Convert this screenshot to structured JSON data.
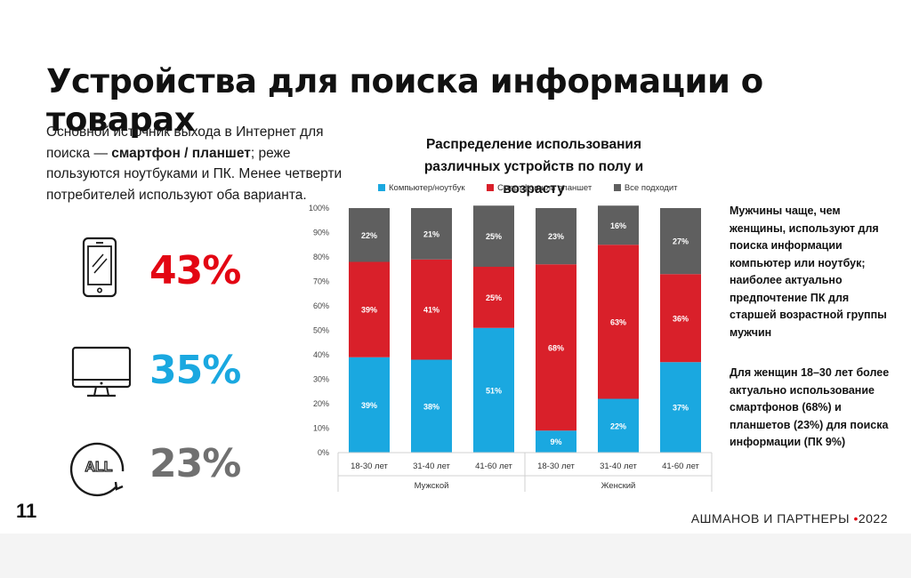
{
  "slide": {
    "title": "Устройства для поиска информации о товарах",
    "intro_before": "Основной источник выхода в Интернет для поиска — ",
    "intro_bold": "смартфон / планшет",
    "intro_after": "; реже пользуются ноутбуками и ПК. Менее четверти потребителей используют оба варианта.",
    "page_number": "11",
    "brand": "АШМАНОВ И ПАРТНЕРЫ",
    "brand_dot": "•",
    "brand_year": "2022"
  },
  "stats": [
    {
      "icon": "smartphone-icon",
      "value": "43%",
      "color": "#e30613"
    },
    {
      "icon": "monitor-icon",
      "value": "35%",
      "color": "#1aa8e0"
    },
    {
      "icon": "all-icon",
      "value": "23%",
      "color": "#707070"
    }
  ],
  "notes": {
    "men": "Мужчины чаще, чем женщины, используют для поиска информации компьютер или ноутбук; наиболее актуально предпочтение ПК для старшей возрастной группы мужчин",
    "women": "Для женщин 18–30 лет более актуально использование смартфонов (68%) и планшетов (23%) для поиска информации (ПК 9%)"
  },
  "chart_data": {
    "type": "bar",
    "stacked": true,
    "title": "Распределение использования различных устройств по полу и возрасту",
    "categories": [
      "18-30 лет",
      "31-40 лет",
      "41-60 лет",
      "18-30 лет",
      "31-40 лет",
      "41-60 лет"
    ],
    "groups": [
      {
        "label": "Мужской",
        "categories": [
          0,
          1,
          2
        ]
      },
      {
        "label": "Женский",
        "categories": [
          3,
          4,
          5
        ]
      }
    ],
    "series": [
      {
        "name": "Компьютер/ноутбук",
        "color": "#1aa8e0",
        "values": [
          39,
          38,
          51,
          9,
          22,
          37
        ],
        "labels": [
          "39%",
          "38%",
          "51%",
          "9%",
          "22%",
          "37%"
        ]
      },
      {
        "name": "Смартфон или планшет",
        "color": "#d9202a",
        "values": [
          39,
          41,
          25,
          68,
          63,
          36
        ],
        "labels": [
          "39%",
          "41%",
          "25%",
          "68%",
          "63%",
          "36%"
        ]
      },
      {
        "name": "Все подходит",
        "color": "#5f5f5f",
        "values": [
          22,
          21,
          25,
          23,
          16,
          27
        ],
        "labels": [
          "22%",
          "21%",
          "25%",
          "23%",
          "16%",
          "27%"
        ]
      }
    ],
    "ylim": [
      0,
      100
    ],
    "yticks": [
      "0%",
      "10%",
      "20%",
      "30%",
      "40%",
      "50%",
      "60%",
      "70%",
      "80%",
      "90%",
      "100%"
    ],
    "legend_position": "top"
  }
}
